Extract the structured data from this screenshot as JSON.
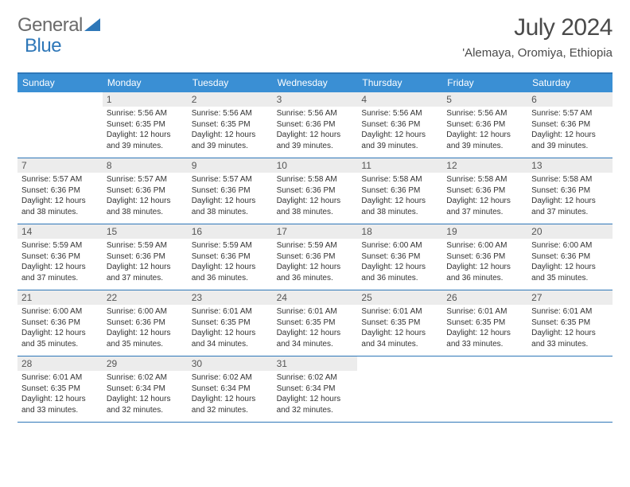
{
  "brand": {
    "part1": "General",
    "part2": "Blue"
  },
  "colors": {
    "brand_blue": "#2e77b8",
    "header_row": "#3a8fd4",
    "daynum_bg": "#ececec",
    "text_gray": "#4a4a4a",
    "logo_gray": "#6a6a6a"
  },
  "title": "July 2024",
  "location": "'Alemaya, Oromiya, Ethiopia",
  "dow": [
    "Sunday",
    "Monday",
    "Tuesday",
    "Wednesday",
    "Thursday",
    "Friday",
    "Saturday"
  ],
  "weeks": [
    [
      {
        "n": "",
        "sr": "",
        "ss": "",
        "dl": ""
      },
      {
        "n": "1",
        "sr": "Sunrise: 5:56 AM",
        "ss": "Sunset: 6:35 PM",
        "dl": "Daylight: 12 hours and 39 minutes."
      },
      {
        "n": "2",
        "sr": "Sunrise: 5:56 AM",
        "ss": "Sunset: 6:35 PM",
        "dl": "Daylight: 12 hours and 39 minutes."
      },
      {
        "n": "3",
        "sr": "Sunrise: 5:56 AM",
        "ss": "Sunset: 6:36 PM",
        "dl": "Daylight: 12 hours and 39 minutes."
      },
      {
        "n": "4",
        "sr": "Sunrise: 5:56 AM",
        "ss": "Sunset: 6:36 PM",
        "dl": "Daylight: 12 hours and 39 minutes."
      },
      {
        "n": "5",
        "sr": "Sunrise: 5:56 AM",
        "ss": "Sunset: 6:36 PM",
        "dl": "Daylight: 12 hours and 39 minutes."
      },
      {
        "n": "6",
        "sr": "Sunrise: 5:57 AM",
        "ss": "Sunset: 6:36 PM",
        "dl": "Daylight: 12 hours and 39 minutes."
      }
    ],
    [
      {
        "n": "7",
        "sr": "Sunrise: 5:57 AM",
        "ss": "Sunset: 6:36 PM",
        "dl": "Daylight: 12 hours and 38 minutes."
      },
      {
        "n": "8",
        "sr": "Sunrise: 5:57 AM",
        "ss": "Sunset: 6:36 PM",
        "dl": "Daylight: 12 hours and 38 minutes."
      },
      {
        "n": "9",
        "sr": "Sunrise: 5:57 AM",
        "ss": "Sunset: 6:36 PM",
        "dl": "Daylight: 12 hours and 38 minutes."
      },
      {
        "n": "10",
        "sr": "Sunrise: 5:58 AM",
        "ss": "Sunset: 6:36 PM",
        "dl": "Daylight: 12 hours and 38 minutes."
      },
      {
        "n": "11",
        "sr": "Sunrise: 5:58 AM",
        "ss": "Sunset: 6:36 PM",
        "dl": "Daylight: 12 hours and 38 minutes."
      },
      {
        "n": "12",
        "sr": "Sunrise: 5:58 AM",
        "ss": "Sunset: 6:36 PM",
        "dl": "Daylight: 12 hours and 37 minutes."
      },
      {
        "n": "13",
        "sr": "Sunrise: 5:58 AM",
        "ss": "Sunset: 6:36 PM",
        "dl": "Daylight: 12 hours and 37 minutes."
      }
    ],
    [
      {
        "n": "14",
        "sr": "Sunrise: 5:59 AM",
        "ss": "Sunset: 6:36 PM",
        "dl": "Daylight: 12 hours and 37 minutes."
      },
      {
        "n": "15",
        "sr": "Sunrise: 5:59 AM",
        "ss": "Sunset: 6:36 PM",
        "dl": "Daylight: 12 hours and 37 minutes."
      },
      {
        "n": "16",
        "sr": "Sunrise: 5:59 AM",
        "ss": "Sunset: 6:36 PM",
        "dl": "Daylight: 12 hours and 36 minutes."
      },
      {
        "n": "17",
        "sr": "Sunrise: 5:59 AM",
        "ss": "Sunset: 6:36 PM",
        "dl": "Daylight: 12 hours and 36 minutes."
      },
      {
        "n": "18",
        "sr": "Sunrise: 6:00 AM",
        "ss": "Sunset: 6:36 PM",
        "dl": "Daylight: 12 hours and 36 minutes."
      },
      {
        "n": "19",
        "sr": "Sunrise: 6:00 AM",
        "ss": "Sunset: 6:36 PM",
        "dl": "Daylight: 12 hours and 36 minutes."
      },
      {
        "n": "20",
        "sr": "Sunrise: 6:00 AM",
        "ss": "Sunset: 6:36 PM",
        "dl": "Daylight: 12 hours and 35 minutes."
      }
    ],
    [
      {
        "n": "21",
        "sr": "Sunrise: 6:00 AM",
        "ss": "Sunset: 6:36 PM",
        "dl": "Daylight: 12 hours and 35 minutes."
      },
      {
        "n": "22",
        "sr": "Sunrise: 6:00 AM",
        "ss": "Sunset: 6:36 PM",
        "dl": "Daylight: 12 hours and 35 minutes."
      },
      {
        "n": "23",
        "sr": "Sunrise: 6:01 AM",
        "ss": "Sunset: 6:35 PM",
        "dl": "Daylight: 12 hours and 34 minutes."
      },
      {
        "n": "24",
        "sr": "Sunrise: 6:01 AM",
        "ss": "Sunset: 6:35 PM",
        "dl": "Daylight: 12 hours and 34 minutes."
      },
      {
        "n": "25",
        "sr": "Sunrise: 6:01 AM",
        "ss": "Sunset: 6:35 PM",
        "dl": "Daylight: 12 hours and 34 minutes."
      },
      {
        "n": "26",
        "sr": "Sunrise: 6:01 AM",
        "ss": "Sunset: 6:35 PM",
        "dl": "Daylight: 12 hours and 33 minutes."
      },
      {
        "n": "27",
        "sr": "Sunrise: 6:01 AM",
        "ss": "Sunset: 6:35 PM",
        "dl": "Daylight: 12 hours and 33 minutes."
      }
    ],
    [
      {
        "n": "28",
        "sr": "Sunrise: 6:01 AM",
        "ss": "Sunset: 6:35 PM",
        "dl": "Daylight: 12 hours and 33 minutes."
      },
      {
        "n": "29",
        "sr": "Sunrise: 6:02 AM",
        "ss": "Sunset: 6:34 PM",
        "dl": "Daylight: 12 hours and 32 minutes."
      },
      {
        "n": "30",
        "sr": "Sunrise: 6:02 AM",
        "ss": "Sunset: 6:34 PM",
        "dl": "Daylight: 12 hours and 32 minutes."
      },
      {
        "n": "31",
        "sr": "Sunrise: 6:02 AM",
        "ss": "Sunset: 6:34 PM",
        "dl": "Daylight: 12 hours and 32 minutes."
      },
      {
        "n": "",
        "sr": "",
        "ss": "",
        "dl": ""
      },
      {
        "n": "",
        "sr": "",
        "ss": "",
        "dl": ""
      },
      {
        "n": "",
        "sr": "",
        "ss": "",
        "dl": ""
      }
    ]
  ]
}
